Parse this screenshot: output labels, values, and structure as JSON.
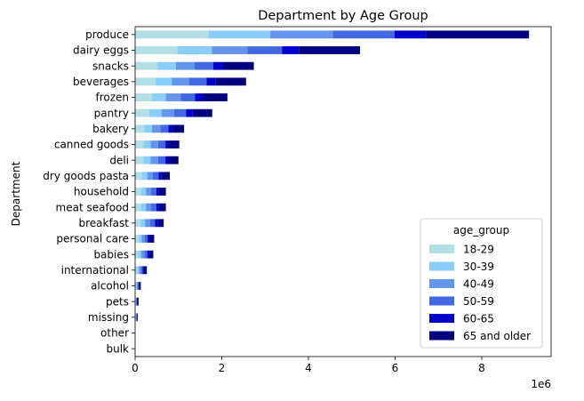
{
  "chart_data": {
    "type": "bar",
    "orientation": "horizontal",
    "stacked": true,
    "title": "Department by Age Group",
    "xlabel": "",
    "ylabel": "Department",
    "x_offset_label": "1e6",
    "xlim": [
      0,
      9.6
    ],
    "xticks": [
      0,
      2,
      4,
      6,
      8
    ],
    "grid": false,
    "categories": [
      "produce",
      "dairy eggs",
      "snacks",
      "beverages",
      "frozen",
      "pantry",
      "bakery",
      "canned goods",
      "deli",
      "dry goods pasta",
      "household",
      "meat seafood",
      "breakfast",
      "personal care",
      "babies",
      "international",
      "alcohol",
      "pets",
      "missing",
      "other",
      "bulk"
    ],
    "legend": {
      "title": "age_group",
      "position": "lower right"
    },
    "series": [
      {
        "name": "18-29",
        "color": "#b0e0e6",
        "values": [
          1.7,
          0.97,
          0.52,
          0.47,
          0.39,
          0.33,
          0.21,
          0.19,
          0.19,
          0.15,
          0.13,
          0.13,
          0.12,
          0.08,
          0.07,
          0.05,
          0.02,
          0.01,
          0.01,
          0.0,
          0.0
        ]
      },
      {
        "name": "30-39",
        "color": "#87cefa",
        "values": [
          1.42,
          0.8,
          0.42,
          0.38,
          0.32,
          0.28,
          0.18,
          0.17,
          0.17,
          0.13,
          0.12,
          0.12,
          0.11,
          0.07,
          0.07,
          0.04,
          0.02,
          0.01,
          0.01,
          0.0,
          0.0
        ]
      },
      {
        "name": "40-49",
        "color": "#6495ed",
        "values": [
          1.44,
          0.82,
          0.43,
          0.4,
          0.34,
          0.29,
          0.19,
          0.17,
          0.17,
          0.13,
          0.12,
          0.12,
          0.12,
          0.07,
          0.07,
          0.04,
          0.02,
          0.01,
          0.01,
          0.0,
          0.0
        ]
      },
      {
        "name": "50-59",
        "color": "#4169e1",
        "values": [
          1.43,
          0.8,
          0.43,
          0.4,
          0.33,
          0.28,
          0.19,
          0.17,
          0.17,
          0.13,
          0.12,
          0.12,
          0.11,
          0.07,
          0.07,
          0.04,
          0.02,
          0.01,
          0.01,
          0.0,
          0.0
        ]
      },
      {
        "name": "60-65",
        "color": "#0000cd",
        "values": [
          0.73,
          0.39,
          0.22,
          0.21,
          0.18,
          0.15,
          0.1,
          0.08,
          0.08,
          0.07,
          0.06,
          0.06,
          0.06,
          0.04,
          0.03,
          0.02,
          0.01,
          0.01,
          0.0,
          0.0,
          0.0
        ]
      },
      {
        "name": "65 and older",
        "color": "#000080",
        "values": [
          2.37,
          1.41,
          0.72,
          0.7,
          0.57,
          0.45,
          0.26,
          0.24,
          0.22,
          0.19,
          0.16,
          0.16,
          0.14,
          0.11,
          0.11,
          0.08,
          0.04,
          0.03,
          0.02,
          0.0,
          0.0
        ]
      }
    ]
  }
}
